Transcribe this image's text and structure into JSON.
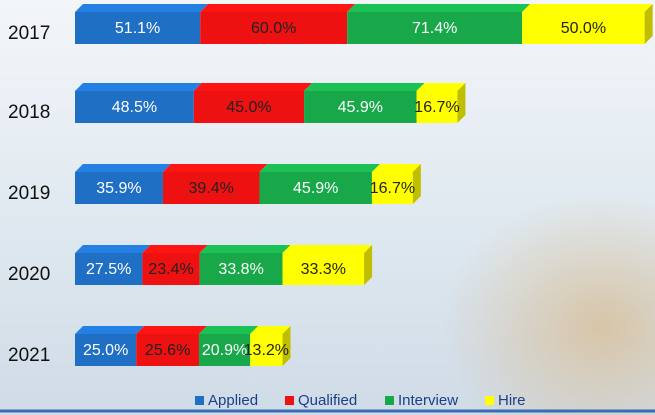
{
  "chart_data": {
    "type": "bar",
    "orientation": "horizontal",
    "stacked": true,
    "categories": [
      "2017",
      "2018",
      "2019",
      "2020",
      "2021"
    ],
    "series": [
      {
        "name": "Applied",
        "color": "#1f6fc5",
        "values": [
          51.1,
          48.5,
          35.9,
          27.5,
          25.0
        ],
        "value_labels": [
          "51.1%",
          "48.5%",
          "35.9%",
          "27.5%",
          "25.0%"
        ]
      },
      {
        "name": "Qualified",
        "color": "#ee1111",
        "values": [
          60.0,
          45.0,
          39.4,
          23.4,
          25.6
        ],
        "value_labels": [
          "60.0%",
          "45.0%",
          "39.4%",
          "23.4%",
          "25.6%"
        ]
      },
      {
        "name": "Interview",
        "color": "#18a84a",
        "values": [
          71.4,
          45.9,
          45.9,
          33.8,
          20.9
        ],
        "value_labels": [
          "71.4%",
          "45.9%",
          "45.9%",
          "33.8%",
          "20.9%"
        ]
      },
      {
        "name": "Hire",
        "color": "#ffff00",
        "values": [
          50.0,
          16.7,
          16.7,
          33.3,
          13.2
        ],
        "value_labels": [
          "50.0%",
          "16.7%",
          "16.7%",
          "33.3%",
          "13.2%"
        ]
      }
    ],
    "legend": "bottom"
  }
}
